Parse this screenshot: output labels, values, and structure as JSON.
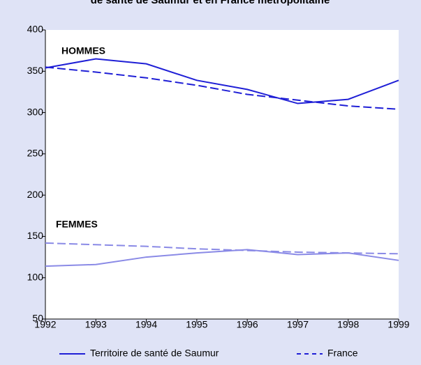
{
  "chart_data": {
    "type": "line",
    "title": "de santé de Saumur et en France métropolitaine",
    "x": [
      1992,
      1993,
      1994,
      1995,
      1996,
      1997,
      1998,
      1999
    ],
    "xlim": [
      1992,
      1999
    ],
    "xticks": [
      1992,
      1993,
      1994,
      1995,
      1996,
      1997,
      1998,
      1999
    ],
    "ylim": [
      50,
      400
    ],
    "yticks": [
      50,
      100,
      150,
      200,
      250,
      300,
      350,
      400
    ],
    "grid": false,
    "annotations": [
      "HOMMES",
      "FEMMES"
    ],
    "series": [
      {
        "name": "Territoire de santé de Saumur",
        "color": "#1f1fd6",
        "dashed": false,
        "values": [
          354,
          365,
          359,
          339,
          328,
          311,
          316,
          339
        ]
      },
      {
        "name": "France",
        "color": "#1f1fd6",
        "dashed": true,
        "values": [
          355,
          349,
          342,
          333,
          322,
          315,
          308,
          304
        ]
      },
      {
        "name": "Territoire de santé de Saumur",
        "color": "#8a8ae6",
        "dashed": false,
        "values": [
          114,
          116,
          125,
          130,
          134,
          128,
          130,
          121
        ]
      },
      {
        "name": "France",
        "color": "#8a8ae6",
        "dashed": true,
        "values": [
          142,
          140,
          138,
          135,
          133,
          131,
          130,
          129
        ]
      }
    ]
  }
}
